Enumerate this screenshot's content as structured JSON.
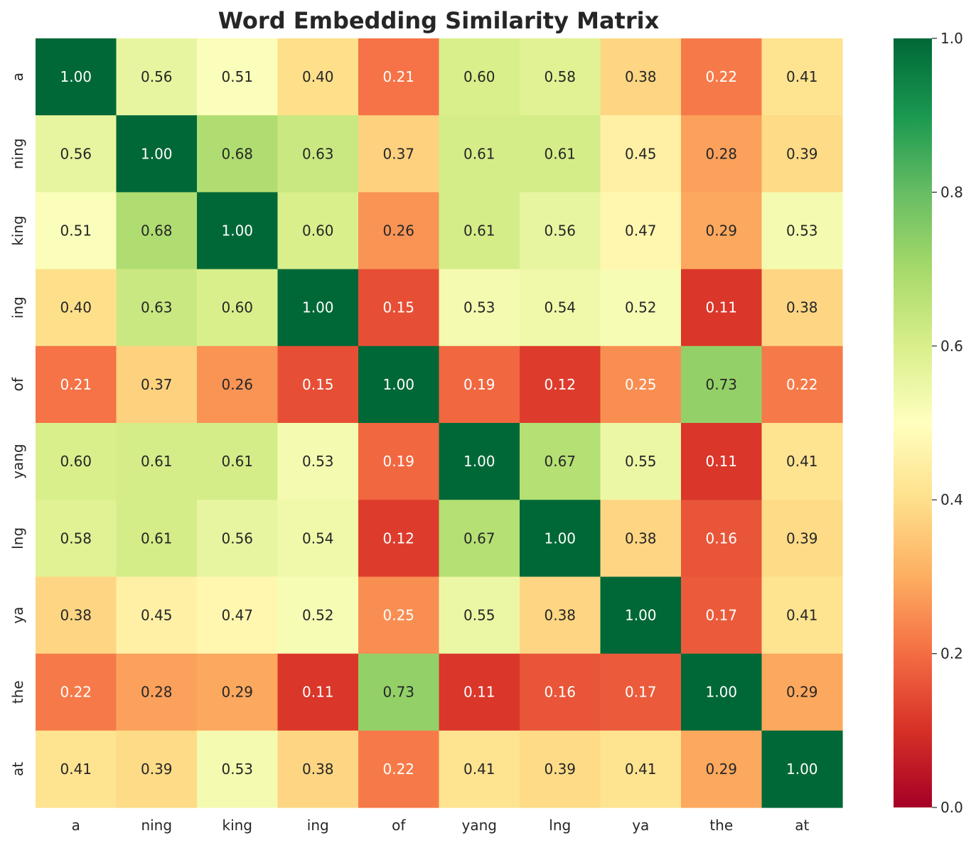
{
  "chart_data": {
    "type": "heatmap",
    "title": "Word Embedding Similarity Matrix",
    "xlabel": "",
    "ylabel": "",
    "x_labels": [
      "a",
      "ning",
      "king",
      "ing",
      "of",
      "yang",
      "lng",
      "ya",
      "the",
      "at"
    ],
    "y_labels": [
      "a",
      "ning",
      "king",
      "ing",
      "of",
      "yang",
      "lng",
      "ya",
      "the",
      "at"
    ],
    "values": [
      [
        1.0,
        0.56,
        0.51,
        0.4,
        0.21,
        0.6,
        0.58,
        0.38,
        0.22,
        0.41
      ],
      [
        0.56,
        1.0,
        0.68,
        0.63,
        0.37,
        0.61,
        0.61,
        0.45,
        0.28,
        0.39
      ],
      [
        0.51,
        0.68,
        1.0,
        0.6,
        0.26,
        0.61,
        0.56,
        0.47,
        0.29,
        0.53
      ],
      [
        0.4,
        0.63,
        0.6,
        1.0,
        0.15,
        0.53,
        0.54,
        0.52,
        0.11,
        0.38
      ],
      [
        0.21,
        0.37,
        0.26,
        0.15,
        1.0,
        0.19,
        0.12,
        0.25,
        0.73,
        0.22
      ],
      [
        0.6,
        0.61,
        0.61,
        0.53,
        0.19,
        1.0,
        0.67,
        0.55,
        0.11,
        0.41
      ],
      [
        0.58,
        0.61,
        0.56,
        0.54,
        0.12,
        0.67,
        1.0,
        0.38,
        0.16,
        0.39
      ],
      [
        0.38,
        0.45,
        0.47,
        0.52,
        0.25,
        0.55,
        0.38,
        1.0,
        0.17,
        0.41
      ],
      [
        0.22,
        0.28,
        0.29,
        0.11,
        0.73,
        0.11,
        0.16,
        0.17,
        1.0,
        0.29
      ],
      [
        0.41,
        0.39,
        0.53,
        0.38,
        0.22,
        0.41,
        0.39,
        0.41,
        0.29,
        1.0
      ]
    ],
    "value_format": "0.00",
    "colormap": "RdYlGn",
    "vmin": 0.0,
    "vmax": 1.0,
    "colorbar_ticks": [
      0.0,
      0.2,
      0.4,
      0.6,
      0.8,
      1.0
    ],
    "colorbar_tick_labels": [
      "0.0",
      "0.2",
      "0.4",
      "0.6",
      "0.8",
      "1.0"
    ],
    "colorbar_placement": "right",
    "grid": false
  }
}
